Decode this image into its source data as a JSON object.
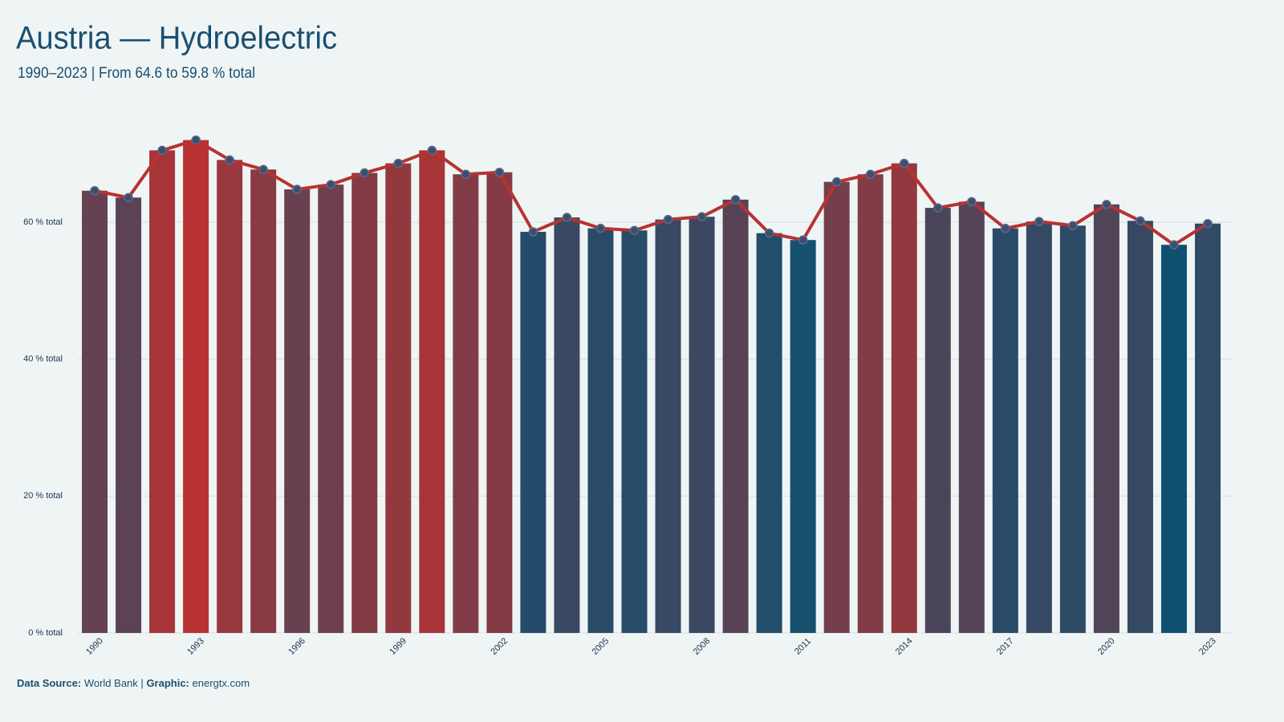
{
  "chart_data": {
    "type": "bar_line",
    "title": "Austria — Hydroelectric",
    "subtitle": "1990–2023 | From 64.6 to 59.8 % total",
    "categories": [
      "1990",
      null,
      null,
      "1993",
      null,
      null,
      "1996",
      null,
      null,
      "1999",
      null,
      null,
      "2002",
      null,
      null,
      "2005",
      null,
      null,
      "2008",
      null,
      null,
      "2011",
      null,
      null,
      "2014",
      null,
      null,
      "2017",
      null,
      null,
      "2020",
      null,
      null,
      "2023"
    ],
    "values": [
      64.6,
      63.6,
      70.5,
      72.0,
      69.1,
      67.7,
      64.8,
      65.5,
      67.2,
      68.6,
      70.5,
      67.0,
      67.3,
      58.6,
      60.7,
      59.1,
      58.8,
      60.4,
      60.8,
      63.3,
      58.4,
      57.4,
      65.9,
      67.0,
      68.6,
      62.1,
      63.0,
      59.1,
      60.1,
      59.5,
      62.6,
      60.2,
      56.7,
      59.8
    ],
    "color_scale": [
      "#0f5072",
      "#b83232"
    ],
    "line_color": "#b83232",
    "marker_color": "#3d4f6e",
    "ylim": [
      0,
      75
    ],
    "yticks": [
      {
        "value": 0,
        "label": "0 % total"
      },
      {
        "value": 20,
        "label": "20 % total"
      },
      {
        "value": 40,
        "label": "40 % total"
      },
      {
        "value": 60,
        "label": "60 % total"
      }
    ],
    "grid": true,
    "footer": {
      "source_label": "Data Source:",
      "source": "World Bank",
      "separator": "|",
      "graphic_label": "Graphic:",
      "graphic": "energtx.com"
    }
  }
}
